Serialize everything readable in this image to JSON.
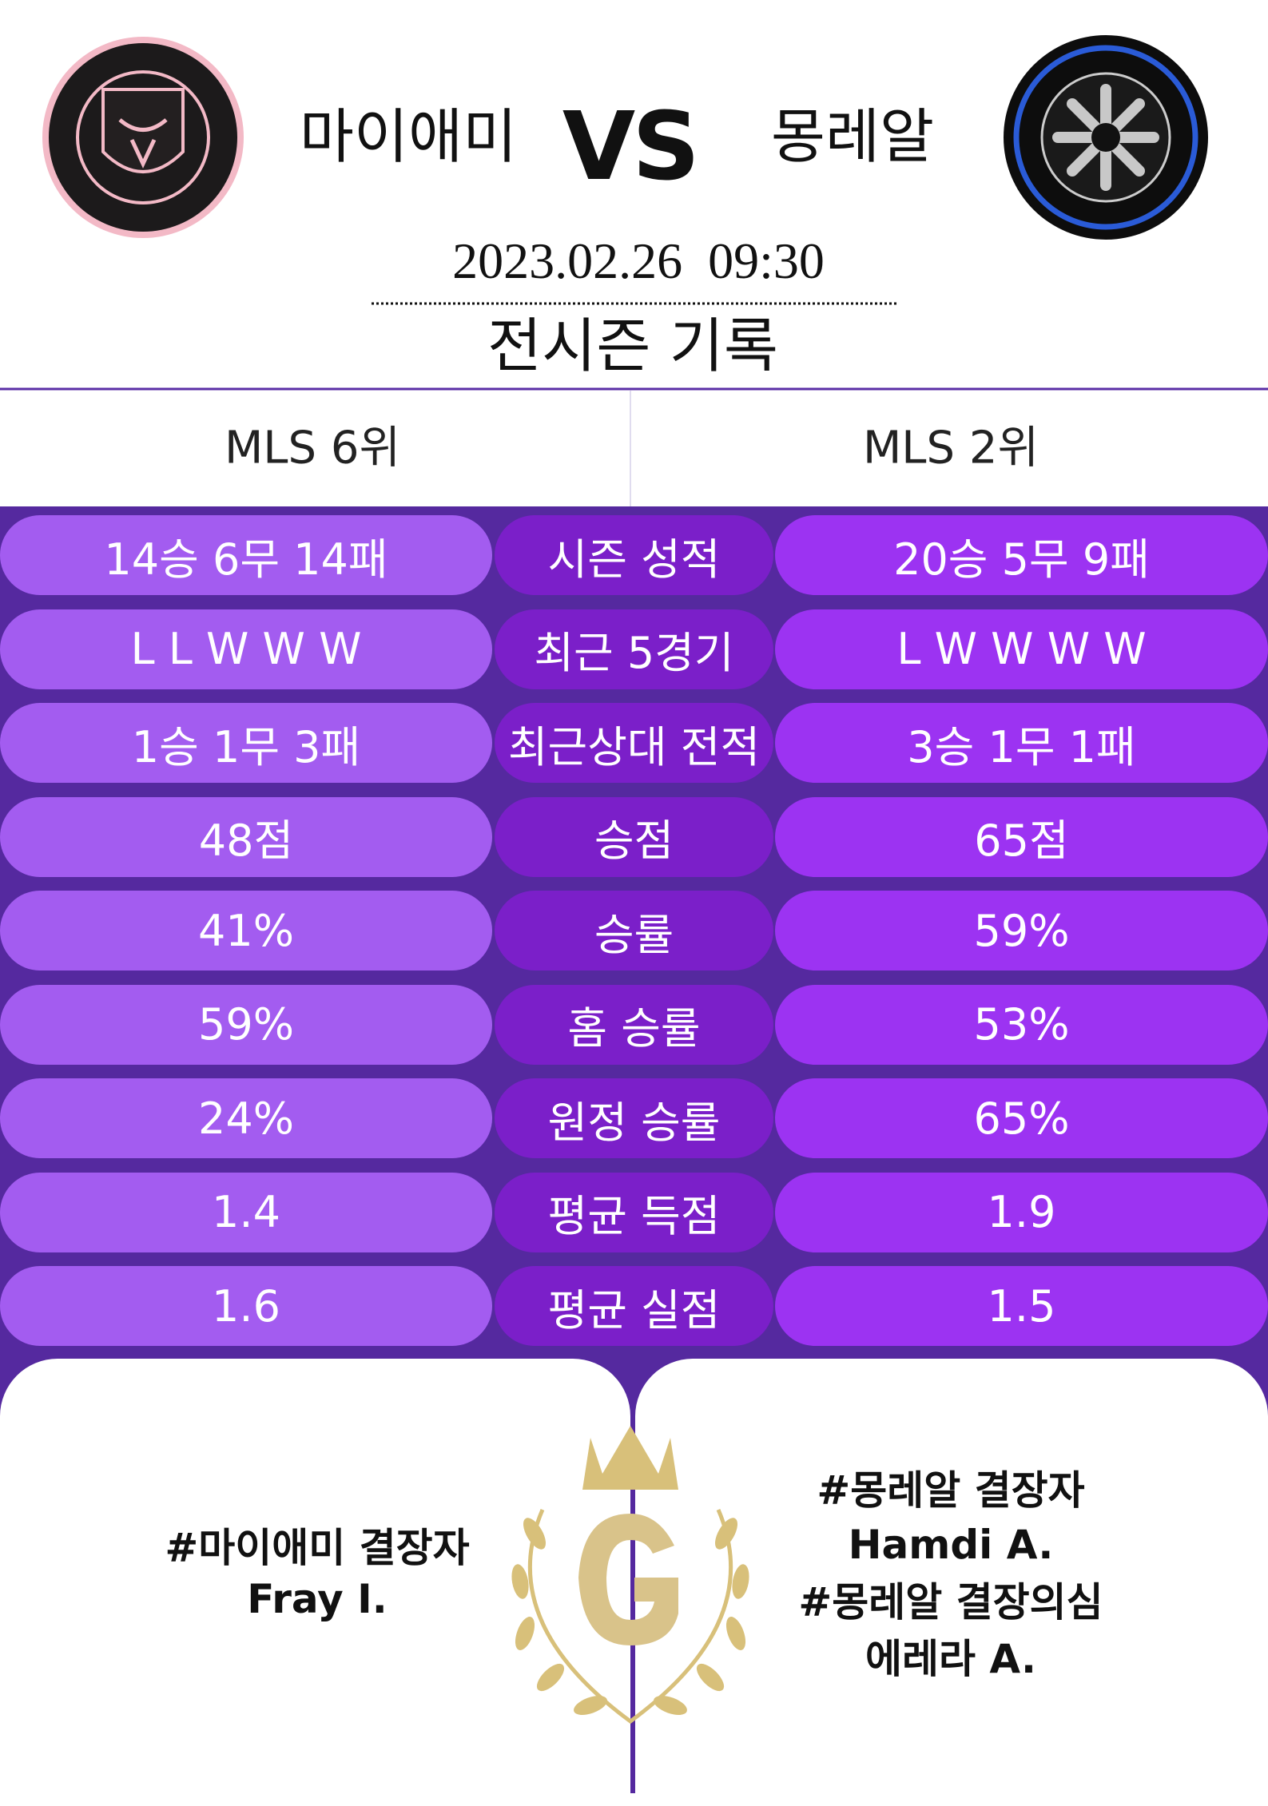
{
  "header": {
    "home_team": "마이애미",
    "vs": "VS",
    "away_team": "몽레알",
    "datetime": "2023.02.26  09:30",
    "section_title": "전시즌 기록"
  },
  "ranks": {
    "home": "MLS 6위",
    "away": "MLS 2위"
  },
  "stats": [
    {
      "home": "14승 6무 14패",
      "label": "시즌 성적",
      "away": "20승 5무 9패"
    },
    {
      "home": "L L W W W",
      "label": "최근 5경기",
      "away": "L W W W W"
    },
    {
      "home": "1승 1무 3패",
      "label": "최근상대 전적",
      "away": "3승 1무 1패"
    },
    {
      "home": "48점",
      "label": "승점",
      "away": "65점"
    },
    {
      "home": "41%",
      "label": "승률",
      "away": "59%"
    },
    {
      "home": "59%",
      "label": "홈 승률",
      "away": "53%"
    },
    {
      "home": "24%",
      "label": "원정 승률",
      "away": "65%"
    },
    {
      "home": "1.4",
      "label": "평균 득점",
      "away": "1.9"
    },
    {
      "home": "1.6",
      "label": "평균 실점",
      "away": "1.5"
    }
  ],
  "absences": {
    "home": [
      "#마이애미 결장자",
      "Fray I."
    ],
    "away": [
      "#몽레알 결장자",
      "Hamdi A.",
      "#몽레알 결장의심",
      "에레라 A."
    ]
  }
}
